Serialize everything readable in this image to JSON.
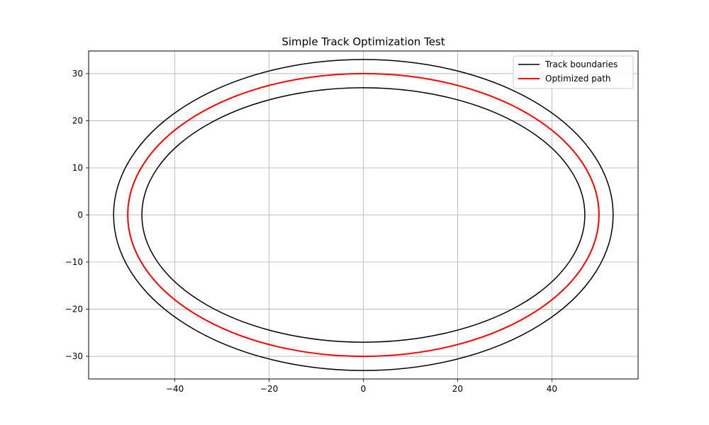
{
  "chart_data": {
    "type": "line",
    "title": "Simple Track Optimization Test",
    "xlabel": "",
    "ylabel": "",
    "xlim": [
      -58.3,
      58.3
    ],
    "ylim": [
      -34.8,
      34.8
    ],
    "xticks": [
      -40,
      -20,
      0,
      20,
      40
    ],
    "yticks": [
      -30,
      -20,
      -10,
      0,
      10,
      20,
      30
    ],
    "xtick_labels": [
      "−40",
      "−20",
      "0",
      "20",
      "40"
    ],
    "ytick_labels": [
      "−30",
      "−20",
      "−10",
      "0",
      "10",
      "20",
      "30"
    ],
    "grid": true,
    "legend": "upper-right",
    "series": [
      {
        "name": "Track boundaries",
        "color": "#000000",
        "shape": "ellipse",
        "curves": [
          {
            "center": [
              0,
              0
            ],
            "rx": 53,
            "ry": 33
          },
          {
            "center": [
              0,
              0
            ],
            "rx": 47,
            "ry": 27
          }
        ]
      },
      {
        "name": "Optimized path",
        "color": "#ff0000",
        "shape": "ellipse",
        "curves": [
          {
            "center": [
              0,
              0
            ],
            "rx": 50,
            "ry": 30
          }
        ]
      }
    ]
  }
}
